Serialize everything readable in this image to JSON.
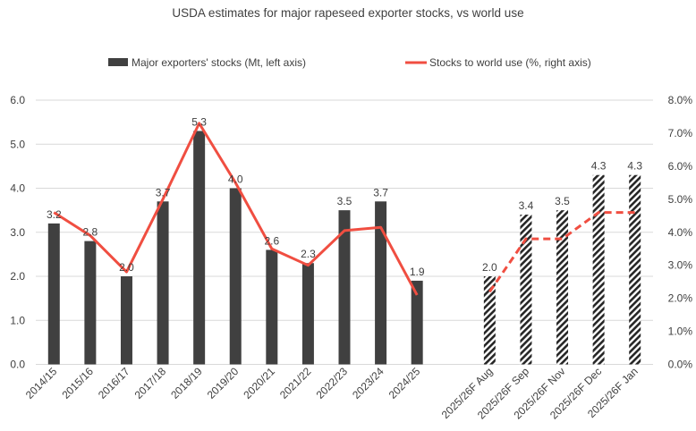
{
  "chart_data": {
    "type": "bar+line",
    "title": "USDA estimates for major rapeseed exporter stocks, vs world use",
    "categories": [
      "2014/15",
      "2015/16",
      "2016/17",
      "2017/18",
      "2018/19",
      "2019/20",
      "2020/21",
      "2021/22",
      "2022/23",
      "2023/24",
      "2024/25",
      "",
      "2025/26F Aug",
      "2025/26F Sep",
      "2025/26F Nov",
      "2025/26F Dec",
      "2025/26F Jan"
    ],
    "series": [
      {
        "name": "Major exporters' stocks (Mt, left axis)",
        "type": "bar",
        "axis": "left",
        "values": [
          3.2,
          2.8,
          2.0,
          3.7,
          5.3,
          4.0,
          2.6,
          2.3,
          3.5,
          3.7,
          1.9,
          null,
          2.0,
          3.4,
          3.5,
          4.3,
          4.3
        ],
        "labels": [
          "3.2",
          "2.8",
          "2.0",
          "3.7",
          "5.3",
          "4.0",
          "2.6",
          "2.3",
          "3.5",
          "3.7",
          "1.9",
          "",
          "2.0",
          "3.4",
          "3.5",
          "4.3",
          "4.3"
        ],
        "color": "#404040",
        "forecast_style": "hatched"
      },
      {
        "name": "Stocks to world use (%, right axis)",
        "type": "line",
        "axis": "right",
        "values": [
          4.6,
          3.9,
          2.8,
          5.0,
          7.3,
          5.5,
          3.5,
          3.0,
          4.05,
          4.15,
          2.1,
          null,
          2.2,
          3.8,
          3.8,
          4.6,
          4.6
        ],
        "color": "#f04e41",
        "forecast_style": "dashed"
      }
    ],
    "left_axis": {
      "ylim": [
        0,
        6
      ],
      "ticks": [
        "0.0",
        "1.0",
        "2.0",
        "3.0",
        "4.0",
        "5.0",
        "6.0"
      ]
    },
    "right_axis": {
      "ylim": [
        0,
        8
      ],
      "ticks": [
        "0.0%",
        "1.0%",
        "2.0%",
        "3.0%",
        "4.0%",
        "5.0%",
        "6.0%",
        "7.0%",
        "8.0%"
      ]
    },
    "grid": true,
    "legend": "top"
  }
}
